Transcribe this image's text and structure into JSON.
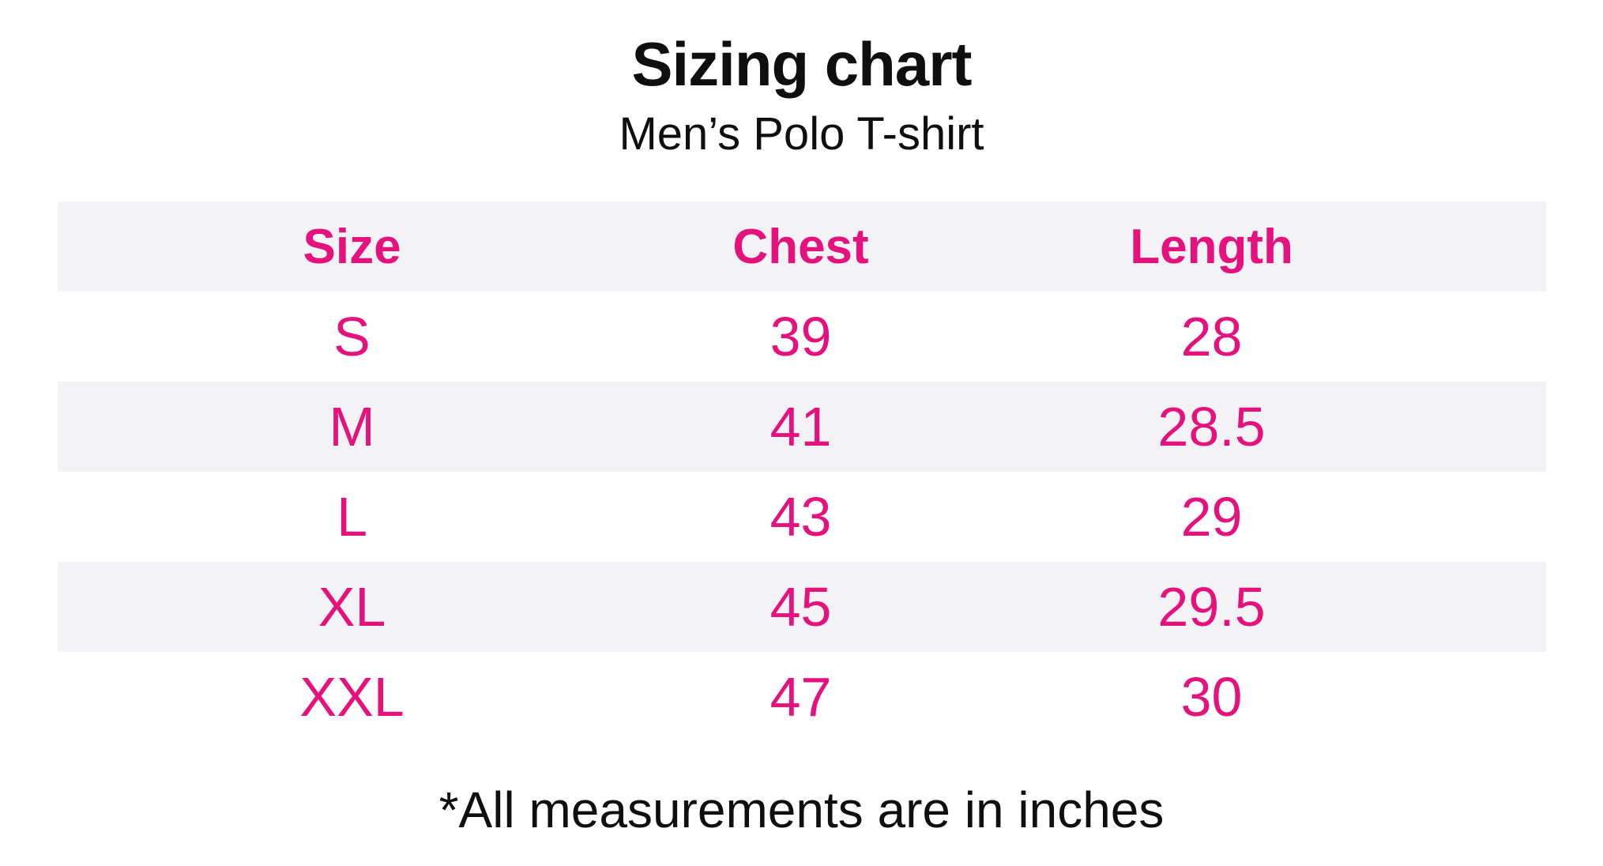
{
  "page": {
    "title": "Sizing chart",
    "subtitle": "Men’s Polo T-shirt",
    "footnote": "*All measurements are in inches"
  },
  "colors": {
    "accent_pink": "#E5127D",
    "stripe_gray": "#F3F3F5",
    "text_black": "#0F0F0F",
    "background": "#FFFFFF"
  },
  "table": {
    "headers": [
      "Size",
      "Chest",
      "Length"
    ],
    "rows": [
      [
        "S",
        "39",
        "28"
      ],
      [
        "M",
        "41",
        "28.5"
      ],
      [
        "L",
        "43",
        "29"
      ],
      [
        "XL",
        "45",
        "29.5"
      ],
      [
        "XXL",
        "47",
        "30"
      ]
    ]
  },
  "chart_data": {
    "type": "table",
    "title": "Sizing chart",
    "subtitle": "Men’s Polo T-shirt",
    "columns": [
      "Size",
      "Chest",
      "Length"
    ],
    "rows": [
      [
        "S",
        39,
        28
      ],
      [
        "M",
        41,
        28.5
      ],
      [
        "L",
        43,
        29
      ],
      [
        "XL",
        45,
        29.5
      ],
      [
        "XXL",
        47,
        30
      ]
    ],
    "units": "inches",
    "footnote": "*All measurements are in inches",
    "layout": {
      "striped_rows": true,
      "stripe_pattern": "header, M and XL rows shaded",
      "text_color": "#E5127D",
      "stripe_color": "#F3F3F5"
    }
  }
}
